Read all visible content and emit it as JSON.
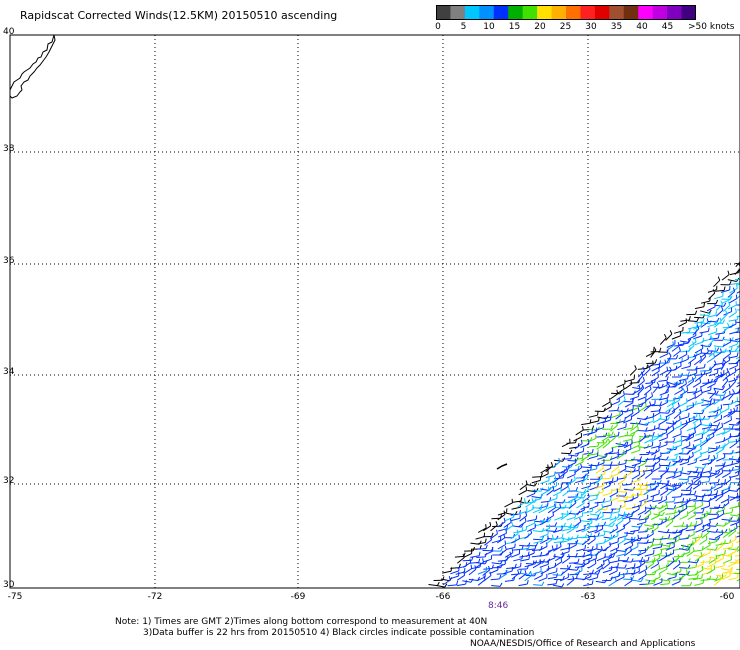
{
  "header": {
    "title": "Rapidscat Corrected Winds(12.5KM) 20150510 ascending"
  },
  "colorbar": {
    "labels": [
      "0",
      "5",
      "10",
      "15",
      "20",
      "25",
      "30",
      "35",
      "40",
      "45",
      ">50 knots"
    ],
    "colors": [
      "#404040",
      "#808080",
      "#00c8ff",
      "#0090ff",
      "#0030ff",
      "#00b000",
      "#40e000",
      "#ffe000",
      "#ffb000",
      "#ff7000",
      "#ff2020",
      "#e00000",
      "#a05030",
      "#703010",
      "#ff00ff",
      "#c000e0",
      "#8000c0",
      "#400080"
    ]
  },
  "map": {
    "lat_labels": [
      "40",
      "38",
      "36",
      "34",
      "32",
      "30"
    ],
    "lon_labels": [
      "-75",
      "-72",
      "-69",
      "-66",
      "-63",
      "-60"
    ],
    "pass_time": "8:46",
    "coast_color": "#000000",
    "grid_color": "#000000"
  },
  "footer": {
    "note_line1": "Note: 1) Times are GMT 2)Times along bottom correspond to measurement at 40N",
    "note_line2": "3)Data buffer is 22 hrs from 20150510 4) Black circles indicate possible contamination",
    "credit": "NOAA/NESDIS/Office of Research and Applications"
  }
}
